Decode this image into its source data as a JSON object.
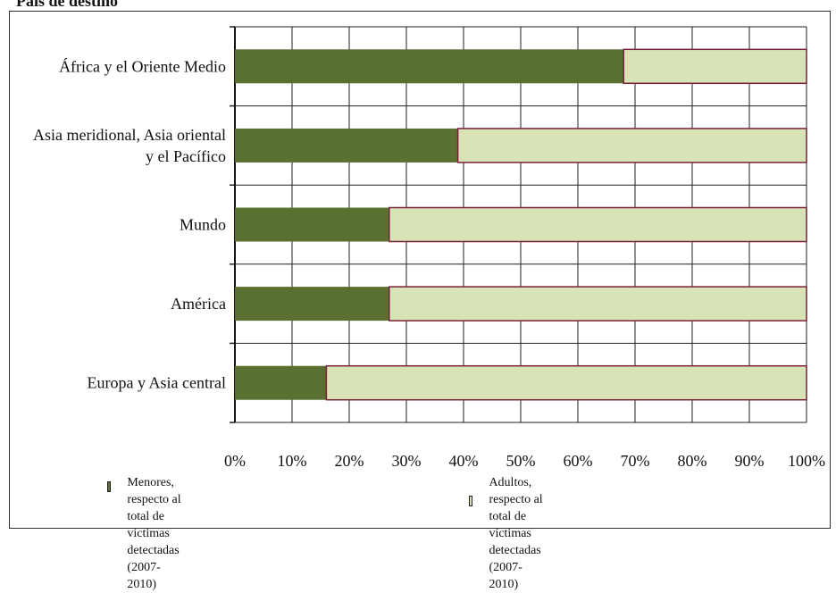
{
  "title": "País de destino",
  "colors": {
    "menores": "#5a7030",
    "adultos": "#d8e4b6",
    "bar_border": "#7a1f3a",
    "grid": "#222222"
  },
  "legend": {
    "menores_label": "Menores, respecto al total de víctimas detectadas",
    "menores_period": "(2007-2010)",
    "adultos_label": "Adultos, respecto al total de víctimas detectadas",
    "adultos_period": "(2007-2010)"
  },
  "chart_data": {
    "type": "bar",
    "orientation": "horizontal",
    "stacked": true,
    "categories": [
      [
        "África y el Oriente Medio"
      ],
      [
        "Asia meridional, Asia oriental",
        "y el Pacífico"
      ],
      [
        "Mundo"
      ],
      [
        "América"
      ],
      [
        "Europa y Asia central"
      ]
    ],
    "series": [
      {
        "name": "Menores, respecto al total de víctimas detectadas (2007-2010)",
        "values": [
          68,
          39,
          27,
          27,
          16
        ]
      },
      {
        "name": "Adultos, respecto al total de víctimas detectadas (2007-2010)",
        "values": [
          32,
          61,
          73,
          73,
          84
        ]
      }
    ],
    "x_ticks": [
      "0%",
      "10%",
      "20%",
      "30%",
      "40%",
      "50%",
      "60%",
      "70%",
      "80%",
      "90%",
      "100%"
    ],
    "xlim": [
      0,
      100
    ],
    "grid": true,
    "legend_position": "bottom"
  }
}
